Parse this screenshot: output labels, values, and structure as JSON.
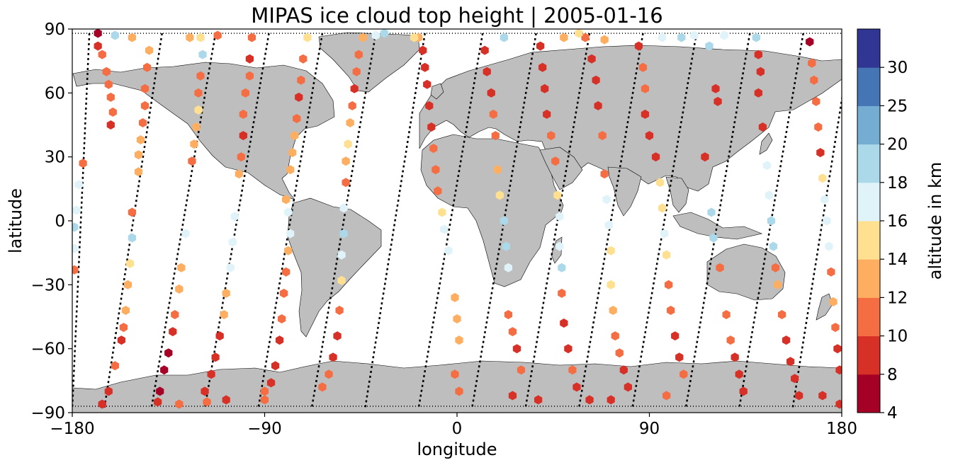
{
  "figure": {
    "title": "MIPAS ice cloud top height | 2005-01-16",
    "xlabel": "longitude",
    "ylabel": "latitude",
    "colorbar_label": "altitude in km"
  },
  "chart_data": {
    "type": "scatter",
    "title": "MIPAS ice cloud top height | 2005-01-16",
    "xlabel": "longitude",
    "ylabel": "latitude",
    "xlim": [
      -180,
      180
    ],
    "ylim": [
      -90,
      90
    ],
    "xticks": [
      -180,
      -90,
      0,
      90,
      180
    ],
    "xtick_labels": [
      "−180",
      "−90",
      "0",
      "90",
      "180"
    ],
    "yticks": [
      90,
      60,
      30,
      0,
      -30,
      -60,
      -90
    ],
    "ytick_labels": [
      "90",
      "60",
      "30",
      "0",
      "−30",
      "−60",
      "−90"
    ],
    "grid": false,
    "colorbar": {
      "label": "altitude in km",
      "boundaries": [
        4,
        8,
        10,
        12,
        14,
        16,
        18,
        20,
        25,
        30
      ],
      "tick_labels": [
        "4",
        "8",
        "10",
        "12",
        "14",
        "16",
        "18",
        "20",
        "25",
        "30"
      ],
      "colors": [
        "#a50026",
        "#d73027",
        "#f46d43",
        "#fdae61",
        "#fee090",
        "#e0f3f8",
        "#abd9e9",
        "#74add1",
        "#4575b4",
        "#313695"
      ]
    },
    "land_color": "#bebebe",
    "ocean_color": "#ffffff",
    "orbit_track_color": "#000000",
    "orbits": [
      {
        "lon_north": -172,
        "lon_south": -180
      },
      {
        "lon_north": -138,
        "lon_south": -165
      },
      {
        "lon_north": -113,
        "lon_south": -143
      },
      {
        "lon_north": -88,
        "lon_south": -118
      },
      {
        "lon_north": -63,
        "lon_south": -93
      },
      {
        "lon_north": -38,
        "lon_south": -68
      },
      {
        "lon_north": -15,
        "lon_south": -43
      },
      {
        "lon_north": 12,
        "lon_south": -18
      },
      {
        "lon_north": 37,
        "lon_south": 7
      },
      {
        "lon_north": 62,
        "lon_south": 32
      },
      {
        "lon_north": 87,
        "lon_south": 57
      },
      {
        "lon_north": 112,
        "lon_south": 82
      },
      {
        "lon_north": 137,
        "lon_south": 107
      },
      {
        "lon_north": 162,
        "lon_south": 132
      },
      {
        "lon_north": 185,
        "lon_south": 157
      }
    ],
    "points": [
      [
        -168,
        82,
        9
      ],
      [
        -166,
        78,
        11
      ],
      [
        -164,
        70,
        11
      ],
      [
        -163,
        64,
        11
      ],
      [
        -162,
        58,
        11
      ],
      [
        -161,
        51,
        11
      ],
      [
        -162,
        45,
        9
      ],
      [
        -175,
        27,
        11
      ],
      [
        -177,
        17,
        17
      ],
      [
        -178,
        5,
        17
      ],
      [
        -179,
        -3,
        19
      ],
      [
        -179,
        -13,
        17
      ],
      [
        -179,
        -23,
        11
      ],
      [
        -168,
        88,
        7
      ],
      [
        -160,
        87,
        19
      ],
      [
        -152,
        86,
        12
      ],
      [
        -144,
        80,
        12
      ],
      [
        -145,
        72,
        11
      ],
      [
        -146,
        62,
        11
      ],
      [
        -146,
        54,
        11
      ],
      [
        -147,
        46,
        11
      ],
      [
        -148,
        38,
        12
      ],
      [
        -149,
        31,
        13
      ],
      [
        -149,
        23,
        13
      ],
      [
        -152,
        4,
        11
      ],
      [
        -152,
        -8,
        19
      ],
      [
        -153,
        -20,
        15
      ],
      [
        -154,
        -30,
        13
      ],
      [
        -155,
        -42,
        13
      ],
      [
        -156,
        -50,
        11
      ],
      [
        -157,
        -56,
        9
      ],
      [
        -160,
        -68,
        11
      ],
      [
        -163,
        -80,
        9
      ],
      [
        -166,
        -86,
        9
      ],
      [
        -130,
        -86,
        11
      ],
      [
        -120,
        86,
        15
      ],
      [
        -119,
        78,
        19
      ],
      [
        -120,
        68,
        11
      ],
      [
        -121,
        60,
        11
      ],
      [
        -121,
        52,
        15
      ],
      [
        -122,
        44,
        13
      ],
      [
        -123,
        36,
        13
      ],
      [
        -124,
        28,
        11
      ],
      [
        -127,
        -6,
        16
      ],
      [
        -129,
        -22,
        13
      ],
      [
        -130,
        -32,
        13
      ],
      [
        -132,
        -44,
        11
      ],
      [
        -133,
        -52,
        9
      ],
      [
        -135,
        -62,
        7
      ],
      [
        -137,
        -70,
        7
      ],
      [
        -139,
        -80,
        7
      ],
      [
        -140,
        -85,
        9
      ],
      [
        -117,
        -85,
        11
      ],
      [
        -96,
        86,
        11
      ],
      [
        -97,
        76,
        9
      ],
      [
        -97,
        68,
        11
      ],
      [
        -99,
        60,
        11
      ],
      [
        -100,
        50,
        11
      ],
      [
        -100,
        40,
        9
      ],
      [
        -101,
        30,
        11
      ],
      [
        -102,
        22,
        13
      ],
      [
        -104,
        2,
        17
      ],
      [
        -105,
        -10,
        17
      ],
      [
        -106,
        -22,
        17
      ],
      [
        -108,
        -34,
        13
      ],
      [
        -109,
        -44,
        13
      ],
      [
        -111,
        -54,
        9
      ],
      [
        -113,
        -64,
        9
      ],
      [
        -115,
        -72,
        9
      ],
      [
        -118,
        -80,
        9
      ],
      [
        -108,
        -84,
        9
      ],
      [
        -90,
        -80,
        11
      ],
      [
        -70,
        86,
        15
      ],
      [
        -72,
        76,
        11
      ],
      [
        -73,
        66,
        11
      ],
      [
        -74,
        58,
        9
      ],
      [
        -75,
        48,
        11
      ],
      [
        -76,
        40,
        13
      ],
      [
        -77,
        32,
        13
      ],
      [
        -78,
        24,
        13
      ],
      [
        -80,
        10,
        13
      ],
      [
        -79,
        4,
        17
      ],
      [
        -78,
        -6,
        16
      ],
      [
        -79,
        -14,
        13
      ],
      [
        -80,
        -24,
        11
      ],
      [
        -81,
        -34,
        11
      ],
      [
        -82,
        -46,
        11
      ],
      [
        -83,
        -56,
        9
      ],
      [
        -85,
        -68,
        9
      ],
      [
        -87,
        -76,
        9
      ],
      [
        -90,
        -84,
        11
      ],
      [
        -44,
        86,
        12
      ],
      [
        -46,
        78,
        11
      ],
      [
        -47,
        70,
        11
      ],
      [
        -48,
        62,
        9
      ],
      [
        -49,
        54,
        11
      ],
      [
        -50,
        46,
        12
      ],
      [
        -51,
        36,
        15
      ],
      [
        -52,
        28,
        12
      ],
      [
        -52,
        18,
        11
      ],
      [
        -53,
        6,
        17
      ],
      [
        -53,
        -6,
        19
      ],
      [
        -54,
        -16,
        17
      ],
      [
        -54,
        -28,
        15
      ],
      [
        -55,
        -42,
        11
      ],
      [
        -56,
        -54,
        9
      ],
      [
        -58,
        -64,
        9
      ],
      [
        -60,
        -72,
        11
      ],
      [
        -63,
        -78,
        11
      ],
      [
        -18,
        86,
        12
      ],
      [
        -16,
        80,
        9
      ],
      [
        -15,
        72,
        9
      ],
      [
        -14,
        64,
        9
      ],
      [
        -13,
        54,
        9
      ],
      [
        -12,
        44,
        9
      ],
      [
        -11,
        34,
        11
      ],
      [
        -10,
        24,
        11
      ],
      [
        -9,
        14,
        11
      ],
      [
        -7,
        4,
        14
      ],
      [
        -6,
        -4,
        17
      ],
      [
        -4,
        -14,
        17
      ],
      [
        -1,
        -36,
        12
      ],
      [
        0,
        -46,
        12
      ],
      [
        1,
        -56,
        12
      ],
      [
        -1,
        -72,
        11
      ],
      [
        1,
        -80,
        11
      ],
      [
        13,
        80,
        9
      ],
      [
        14,
        70,
        9
      ],
      [
        16,
        60,
        9
      ],
      [
        17,
        50,
        11
      ],
      [
        18,
        40,
        11
      ],
      [
        19,
        24,
        13
      ],
      [
        20,
        12,
        15
      ],
      [
        22,
        0,
        18
      ],
      [
        23,
        -12,
        18
      ],
      [
        24,
        -22,
        17
      ],
      [
        24,
        -44,
        11
      ],
      [
        26,
        -52,
        11
      ],
      [
        28,
        -60,
        9
      ],
      [
        30,
        -70,
        11
      ],
      [
        26,
        -82,
        9
      ],
      [
        38,
        -84,
        9
      ],
      [
        39,
        82,
        9
      ],
      [
        40,
        72,
        9
      ],
      [
        41,
        62,
        9
      ],
      [
        42,
        50,
        9
      ],
      [
        44,
        40,
        11
      ],
      [
        46,
        28,
        11
      ],
      [
        47,
        12,
        15
      ],
      [
        48,
        2,
        17
      ],
      [
        48,
        -12,
        17
      ],
      [
        49,
        -22,
        19
      ],
      [
        49,
        -34,
        11
      ],
      [
        50,
        -48,
        9
      ],
      [
        52,
        -60,
        9
      ],
      [
        54,
        -70,
        11
      ],
      [
        56,
        -78,
        9
      ],
      [
        62,
        -84,
        9
      ],
      [
        60,
        86,
        11
      ],
      [
        63,
        76,
        9
      ],
      [
        65,
        66,
        9
      ],
      [
        66,
        54,
        9
      ],
      [
        68,
        40,
        11
      ],
      [
        69,
        22,
        11
      ],
      [
        70,
        10,
        16
      ],
      [
        71,
        -2,
        17
      ],
      [
        72,
        -14,
        15
      ],
      [
        72,
        -30,
        15
      ],
      [
        73,
        -42,
        13
      ],
      [
        74,
        -54,
        11
      ],
      [
        76,
        -62,
        11
      ],
      [
        78,
        -70,
        9
      ],
      [
        80,
        -78,
        9
      ],
      [
        72,
        -84,
        9
      ],
      [
        85,
        82,
        9
      ],
      [
        87,
        72,
        11
      ],
      [
        88,
        62,
        11
      ],
      [
        88,
        50,
        9
      ],
      [
        90,
        40,
        9
      ],
      [
        93,
        30,
        9
      ],
      [
        95,
        18,
        15
      ],
      [
        96,
        6,
        15
      ],
      [
        97,
        -6,
        17
      ],
      [
        98,
        -16,
        15
      ],
      [
        99,
        -30,
        11
      ],
      [
        100,
        -42,
        11
      ],
      [
        102,
        -54,
        9
      ],
      [
        104,
        -64,
        9
      ],
      [
        106,
        -72,
        11
      ],
      [
        98,
        -82,
        11
      ],
      [
        111,
        87,
        16
      ],
      [
        118,
        82,
        19
      ],
      [
        121,
        62,
        9
      ],
      [
        122,
        56,
        9
      ],
      [
        116,
        30,
        9
      ],
      [
        119,
        4,
        18
      ],
      [
        120,
        -8,
        19
      ],
      [
        123,
        -22,
        11
      ],
      [
        126,
        -44,
        11
      ],
      [
        128,
        -56,
        11
      ],
      [
        130,
        -64,
        9
      ],
      [
        132,
        -72,
        9
      ],
      [
        134,
        -80,
        9
      ],
      [
        140,
        86,
        19
      ],
      [
        141,
        78,
        9
      ],
      [
        142,
        70,
        9
      ],
      [
        141,
        60,
        9
      ],
      [
        143,
        44,
        9
      ],
      [
        145,
        26,
        16
      ],
      [
        146,
        12,
        16
      ],
      [
        147,
        0,
        18
      ],
      [
        148,
        -12,
        18
      ],
      [
        149,
        -22,
        10
      ],
      [
        150,
        -30,
        12
      ],
      [
        152,
        -44,
        11
      ],
      [
        154,
        -56,
        9
      ],
      [
        156,
        -66,
        9
      ],
      [
        158,
        -74,
        9
      ],
      [
        160,
        -82,
        9
      ],
      [
        165,
        84,
        7
      ],
      [
        166,
        74,
        11
      ],
      [
        167,
        66,
        11
      ],
      [
        168,
        56,
        11
      ],
      [
        169,
        44,
        11
      ],
      [
        170,
        32,
        9
      ],
      [
        171,
        20,
        14
      ],
      [
        172,
        10,
        16
      ],
      [
        173,
        0,
        16
      ],
      [
        174,
        -12,
        17
      ],
      [
        175,
        -24,
        11
      ],
      [
        176,
        -38,
        13
      ],
      [
        177,
        -50,
        11
      ],
      [
        178,
        -60,
        9
      ],
      [
        179,
        -70,
        9
      ],
      [
        171,
        -82,
        9
      ],
      [
        179,
        -86,
        9
      ],
      [
        -38,
        87,
        17
      ],
      [
        -34,
        88,
        19
      ],
      [
        -20,
        86,
        15
      ],
      [
        22,
        86,
        19
      ],
      [
        50,
        86,
        13
      ],
      [
        57,
        88,
        15
      ],
      [
        69,
        85,
        12
      ],
      [
        96,
        86,
        16
      ],
      [
        105,
        86,
        19
      ],
      [
        125,
        87,
        16
      ],
      [
        -112,
        87,
        11
      ],
      [
        -125,
        86,
        13
      ]
    ]
  }
}
